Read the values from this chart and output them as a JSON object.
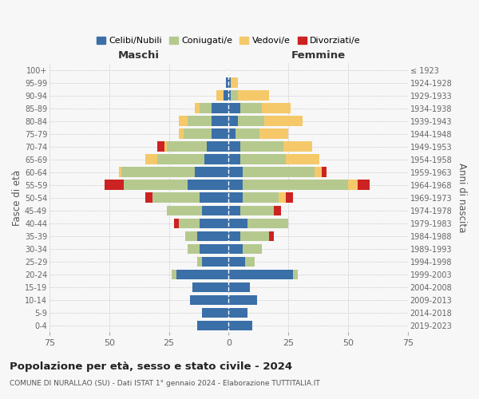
{
  "age_groups": [
    "0-4",
    "5-9",
    "10-14",
    "15-19",
    "20-24",
    "25-29",
    "30-34",
    "35-39",
    "40-44",
    "45-49",
    "50-54",
    "55-59",
    "60-64",
    "65-69",
    "70-74",
    "75-79",
    "80-84",
    "85-89",
    "90-94",
    "95-99",
    "100+"
  ],
  "birth_years": [
    "2019-2023",
    "2014-2018",
    "2009-2013",
    "2004-2008",
    "1999-2003",
    "1994-1998",
    "1989-1993",
    "1984-1988",
    "1979-1983",
    "1974-1978",
    "1969-1973",
    "1964-1968",
    "1959-1963",
    "1954-1958",
    "1949-1953",
    "1944-1948",
    "1939-1943",
    "1934-1938",
    "1929-1933",
    "1924-1928",
    "≤ 1923"
  ],
  "colors": {
    "celibe": "#3a6fa8",
    "coniugato": "#b5c98e",
    "vedovo": "#f5c96a",
    "divorziato": "#cc2222"
  },
  "maschi": {
    "celibe": [
      13,
      11,
      16,
      15,
      22,
      11,
      12,
      13,
      12,
      11,
      12,
      17,
      14,
      10,
      9,
      7,
      7,
      7,
      2,
      1,
      0
    ],
    "coniugato": [
      0,
      0,
      0,
      0,
      2,
      2,
      5,
      5,
      9,
      15,
      20,
      27,
      31,
      20,
      17,
      12,
      10,
      5,
      0,
      0,
      0
    ],
    "vedovo": [
      0,
      0,
      0,
      0,
      0,
      0,
      0,
      0,
      0,
      0,
      0,
      0,
      1,
      5,
      1,
      2,
      4,
      2,
      3,
      0,
      0
    ],
    "divorziato": [
      0,
      0,
      0,
      0,
      0,
      0,
      0,
      0,
      2,
      0,
      3,
      8,
      0,
      0,
      3,
      0,
      0,
      0,
      0,
      0,
      0
    ]
  },
  "femmine": {
    "nubile": [
      10,
      8,
      12,
      9,
      27,
      7,
      6,
      5,
      8,
      5,
      6,
      6,
      6,
      5,
      5,
      3,
      4,
      5,
      1,
      1,
      0
    ],
    "coniugata": [
      0,
      0,
      0,
      0,
      2,
      4,
      8,
      12,
      17,
      14,
      15,
      44,
      30,
      19,
      18,
      10,
      11,
      9,
      3,
      0,
      0
    ],
    "vedova": [
      0,
      0,
      0,
      0,
      0,
      0,
      0,
      0,
      0,
      0,
      3,
      4,
      3,
      14,
      12,
      12,
      16,
      12,
      13,
      3,
      0
    ],
    "divorziata": [
      0,
      0,
      0,
      0,
      0,
      0,
      0,
      2,
      0,
      3,
      3,
      5,
      2,
      0,
      0,
      0,
      0,
      0,
      0,
      0,
      0
    ]
  },
  "xlim": 75,
  "title": "Popolazione per età, sesso e stato civile - 2024",
  "subtitle": "COMUNE DI NURALLAO (SU) - Dati ISTAT 1° gennaio 2024 - Elaborazione TUTTITALIA.IT",
  "xlabel_left": "Maschi",
  "xlabel_right": "Femmine",
  "ylabel_left": "Fasce di età",
  "ylabel_right": "Anni di nascita",
  "legend_labels": [
    "Celibi/Nubili",
    "Coniugati/e",
    "Vedovi/e",
    "Divorziati/e"
  ],
  "bg_color": "#f7f7f7",
  "grid_color": "#cccccc"
}
